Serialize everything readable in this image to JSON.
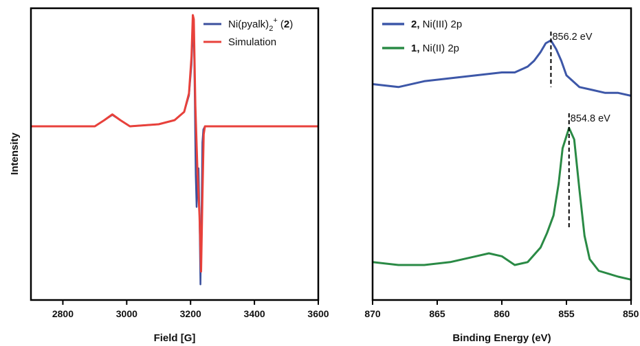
{
  "chart_data": [
    {
      "type": "line",
      "xlabel": "Field [G]",
      "ylabel": "Intensity",
      "xlim": [
        2700,
        3600
      ],
      "ylim": [
        -1.0,
        0.6
      ],
      "xticks": [
        "2800",
        "3000",
        "3200",
        "3400",
        "3600"
      ],
      "legend_position": "top-right",
      "legend": [
        {
          "prefix": "Ni(pyalk)",
          "sub": "2",
          "sup": "+",
          "suffix_open": " (",
          "bold": "2",
          "suffix_close": ")"
        },
        {
          "text": "Simulation"
        }
      ],
      "series": [
        {
          "name": "Ni(pyalk)2+ (2)",
          "color": "#3a4f9c",
          "x": [
            2700,
            2900,
            2930,
            2955,
            2980,
            3010,
            3100,
            3150,
            3180,
            3195,
            3203,
            3207,
            3210,
            3213,
            3216,
            3219,
            3222,
            3225,
            3228,
            3231,
            3234,
            3237,
            3240,
            3245,
            3300,
            3400,
            3600
          ],
          "y": [
            0.0,
            0.0,
            0.03,
            0.055,
            0.03,
            0.0,
            0.01,
            0.03,
            0.07,
            0.15,
            0.3,
            0.45,
            0.48,
            0.15,
            -0.3,
            -0.5,
            -0.3,
            -0.26,
            -0.55,
            -0.98,
            -0.6,
            -0.1,
            -0.02,
            0.0,
            0.0,
            0.0,
            0.0
          ]
        },
        {
          "name": "Simulation",
          "color": "#e8413b",
          "x": [
            2700,
            2900,
            2930,
            2955,
            2980,
            3010,
            3100,
            3150,
            3180,
            3195,
            3203,
            3207,
            3210,
            3215,
            3222,
            3228,
            3233,
            3237,
            3241,
            3245,
            3300,
            3400,
            3600
          ],
          "y": [
            0.0,
            0.0,
            0.03,
            0.058,
            0.03,
            0.0,
            0.01,
            0.03,
            0.07,
            0.16,
            0.34,
            0.54,
            0.52,
            0.1,
            -0.3,
            -0.55,
            -0.9,
            -0.45,
            -0.05,
            0.0,
            0.0,
            0.0,
            0.0
          ]
        }
      ]
    },
    {
      "type": "line",
      "xlabel": "Binding Energy (eV)",
      "xlim": [
        870,
        850
      ],
      "ylim": [
        0,
        1
      ],
      "xticks": [
        "870",
        "865",
        "860",
        "855",
        "850"
      ],
      "legend_position": "top-left",
      "legend": [
        {
          "bold": "2,",
          "text": " Ni(III) 2p"
        },
        {
          "bold": "1,",
          "text": " Ni(II) 2p"
        }
      ],
      "series": [
        {
          "name": "2, Ni(III) 2p",
          "color": "#3d57a8",
          "x": [
            870,
            868,
            866,
            864,
            862,
            860,
            859,
            858.5,
            858,
            857.5,
            857,
            856.6,
            856.2,
            855.8,
            855.4,
            855,
            854.5,
            854,
            853,
            852,
            851,
            850
          ],
          "y": [
            0.74,
            0.73,
            0.75,
            0.76,
            0.77,
            0.78,
            0.78,
            0.79,
            0.8,
            0.82,
            0.85,
            0.88,
            0.89,
            0.86,
            0.82,
            0.77,
            0.75,
            0.73,
            0.72,
            0.71,
            0.71,
            0.7
          ]
        },
        {
          "name": "1, Ni(II) 2p",
          "color": "#2a8a45",
          "x": [
            870,
            868,
            866,
            864,
            862,
            861,
            860,
            859,
            858,
            857,
            856.5,
            856,
            855.6,
            855.3,
            854.8,
            854.4,
            854,
            853.6,
            853.2,
            852.5,
            851,
            850
          ],
          "y": [
            0.13,
            0.12,
            0.12,
            0.13,
            0.15,
            0.16,
            0.15,
            0.12,
            0.13,
            0.18,
            0.23,
            0.29,
            0.4,
            0.52,
            0.59,
            0.55,
            0.38,
            0.22,
            0.14,
            0.1,
            0.08,
            0.07
          ]
        }
      ],
      "annotations": [
        {
          "x": 856.2,
          "y_top": 0.92,
          "y_bottom": 0.73,
          "label": "856.2 eV"
        },
        {
          "x": 854.8,
          "y_top": 0.64,
          "y_bottom": 0.24,
          "label": "854.8 eV"
        }
      ]
    }
  ]
}
